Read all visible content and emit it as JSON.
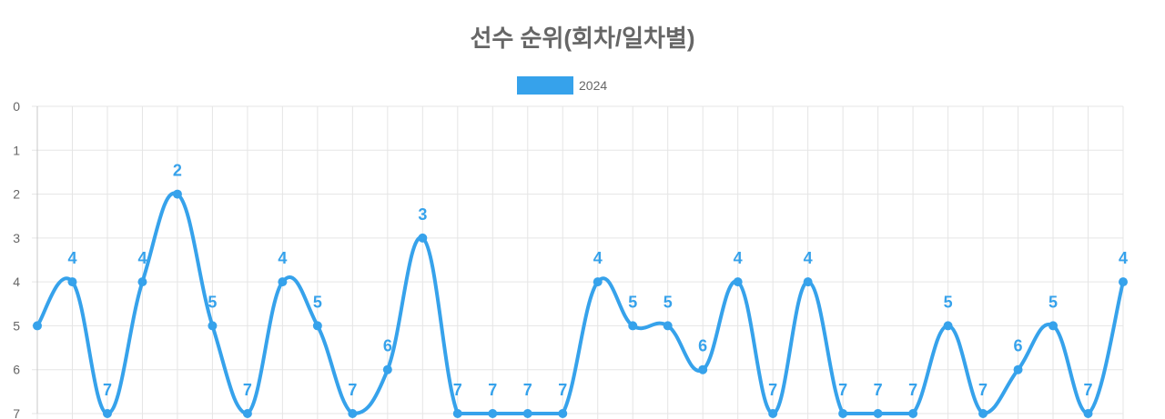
{
  "chart_data": {
    "type": "line",
    "title": "선수 순위(회차/일차별)",
    "xlabel": "",
    "ylabel": "",
    "ylim": [
      0,
      7
    ],
    "y_reversed": true,
    "y_ticks": [
      "0",
      "1",
      "2",
      "3",
      "4",
      "5",
      "6",
      "7"
    ],
    "legend_position": "top",
    "grid": true,
    "series": [
      {
        "name": "2024",
        "color": "#36a2eb",
        "values": [
          5,
          4,
          7,
          4,
          2,
          5,
          7,
          4,
          5,
          7,
          6,
          3,
          7,
          7,
          7,
          7,
          4,
          5,
          5,
          6,
          4,
          7,
          4,
          7,
          7,
          7,
          5,
          7,
          6,
          5,
          7,
          4
        ],
        "labels": [
          "",
          "4",
          "7",
          "4",
          "2",
          "5",
          "7",
          "4",
          "5",
          "7",
          "6",
          "3",
          "7",
          "7",
          "7",
          "7",
          "4",
          "5",
          "5",
          "6",
          "4",
          "7",
          "4",
          "7",
          "7",
          "7",
          "5",
          "7",
          "6",
          "5",
          "7",
          "4"
        ]
      }
    ]
  },
  "colors": {
    "grid": "#e5e5e5",
    "axis": "#c8c8c8",
    "text": "#666666"
  }
}
